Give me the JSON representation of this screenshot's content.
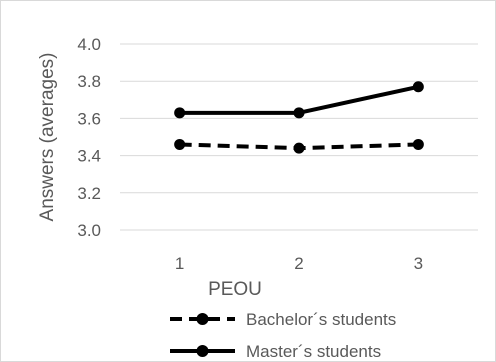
{
  "chart_data": {
    "type": "line",
    "xlabel": "PEOU",
    "ylabel": "Answers (averages)",
    "categories": [
      "1",
      "2",
      "3"
    ],
    "ylim": [
      3.0,
      4.0
    ],
    "yticks": [
      "3.0",
      "3.2",
      "3.4",
      "3.6",
      "3.8",
      "4.0"
    ],
    "grid": true,
    "legend_position": "bottom",
    "series": [
      {
        "name": "Bachelor´s students",
        "values": [
          3.46,
          3.44,
          3.46
        ],
        "style": "dashed",
        "color": "#000000"
      },
      {
        "name": "Master´s students",
        "values": [
          3.63,
          3.63,
          3.77
        ],
        "style": "solid",
        "color": "#000000"
      }
    ]
  }
}
